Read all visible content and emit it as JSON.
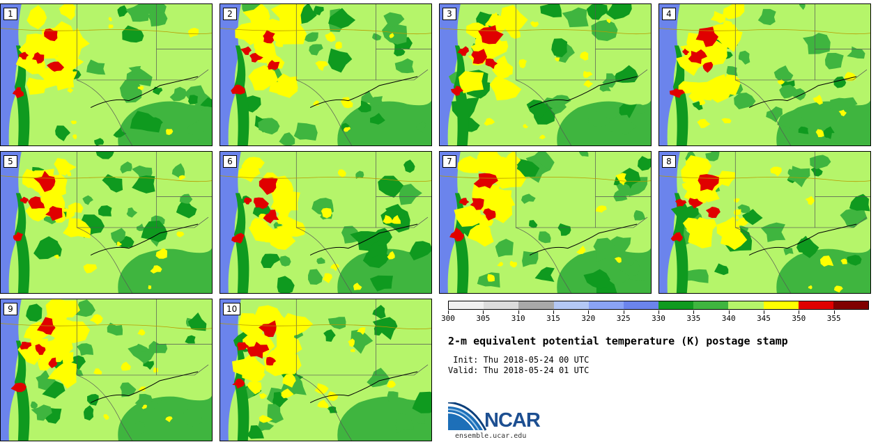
{
  "panels": [
    {
      "label": "1"
    },
    {
      "label": "2"
    },
    {
      "label": "3"
    },
    {
      "label": "4"
    },
    {
      "label": "5"
    },
    {
      "label": "6"
    },
    {
      "label": "7"
    },
    {
      "label": "8"
    },
    {
      "label": "9"
    },
    {
      "label": "10"
    }
  ],
  "colorbar": {
    "colors": [
      "#f0f0f0",
      "#dcdcdc",
      "#a9a9a9",
      "#b4c8f5",
      "#8aa3f5",
      "#6b84ec",
      "#0f9a1f",
      "#3fb53f",
      "#b5f56a",
      "#ffff00",
      "#e00000",
      "#800000"
    ],
    "ticks": [
      "300",
      "305",
      "310",
      "315",
      "320",
      "325",
      "330",
      "335",
      "340",
      "345",
      "350",
      "355"
    ]
  },
  "title": "2-m equivalent potential temperature (K) postage stamp",
  "init_line": " Init: Thu 2018-05-24 00 UTC",
  "valid_line": "Valid: Thu 2018-05-24 01 UTC",
  "logo": {
    "text": "NCAR",
    "url": "ensemble.ucar.edu"
  },
  "map_colors": {
    "ocean": "#6b84ec",
    "light_green": "#b5f56a",
    "mid_green": "#3fb53f",
    "dark_green": "#0f9a1f",
    "yellow": "#ffff00",
    "red": "#e00000",
    "border": "#555555"
  }
}
